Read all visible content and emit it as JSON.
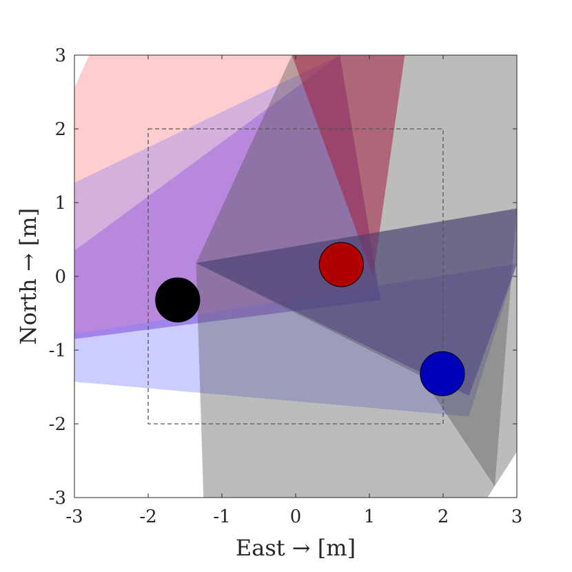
{
  "chart_data": {
    "type": "scatter",
    "title": "",
    "xlabel": "East → [m]",
    "ylabel": "North → [m]",
    "xlim": [
      -3,
      3
    ],
    "ylim": [
      -3,
      3
    ],
    "xticks": [
      "-3",
      "-2",
      "-1",
      "0",
      "1",
      "2",
      "3"
    ],
    "yticks": [
      "-3",
      "-2",
      "-1",
      "0",
      "1",
      "2",
      "3"
    ],
    "grid": false,
    "legend": "none",
    "boundary_box": {
      "x": [
        -2,
        2
      ],
      "y": [
        -2,
        2
      ],
      "style": "dashed",
      "color": "#555555"
    },
    "regions": [
      {
        "color": "#ff9090",
        "opacity": 0.45,
        "points": [
          [
            -3,
            2.56
          ],
          [
            -2.8,
            3.0
          ],
          [
            0.6,
            3.0
          ],
          [
            -3,
            1.27
          ]
        ]
      },
      {
        "color": "#b070c0",
        "opacity": 0.55,
        "points": [
          [
            -3,
            1.27
          ],
          [
            0.6,
            3.0
          ],
          [
            -3,
            0.35
          ]
        ]
      },
      {
        "color": "#a060d0",
        "opacity": 0.75,
        "points": [
          [
            -3,
            0.35
          ],
          [
            0.6,
            3.0
          ],
          [
            1.15,
            -0.32
          ],
          [
            -3,
            -0.85
          ]
        ]
      },
      {
        "color": "#8080ff",
        "opacity": 0.4,
        "points": [
          [
            -3,
            -0.78
          ],
          [
            3.0,
            0.17
          ],
          [
            2.35,
            -1.9
          ],
          [
            -3,
            -1.43
          ]
        ]
      },
      {
        "color": "#4e4e4e",
        "opacity": 0.38,
        "points": [
          [
            -1.35,
            0.18
          ],
          [
            -0.05,
            3.0
          ],
          [
            3.0,
            3.0
          ],
          [
            3.0,
            -2.38
          ],
          [
            2.6,
            -3.0
          ],
          [
            -1.25,
            -3.0
          ]
        ]
      },
      {
        "color": "#444444",
        "opacity": 0.35,
        "points": [
          [
            -1.35,
            0.18
          ],
          [
            3.0,
            0.92
          ],
          [
            2.7,
            -2.85
          ],
          [
            1.7,
            -1.35
          ]
        ]
      },
      {
        "color": "#a02040",
        "opacity": 0.55,
        "points": [
          [
            -0.05,
            3.0
          ],
          [
            1.48,
            3.0
          ],
          [
            1.05,
            0.0
          ]
        ]
      },
      {
        "color": "#4a3f80",
        "opacity": 0.5,
        "points": [
          [
            -1.35,
            0.18
          ],
          [
            3.0,
            0.92
          ],
          [
            3.0,
            0.17
          ],
          [
            2.35,
            -1.62
          ]
        ]
      }
    ],
    "series": [
      {
        "name": "",
        "points": [
          {
            "x": -1.6,
            "y": -0.32,
            "radius": 0.3
          }
        ],
        "color": "#000000"
      },
      {
        "name": "",
        "points": [
          {
            "x": 0.62,
            "y": 0.16,
            "radius": 0.3
          }
        ],
        "color": "#b00000"
      },
      {
        "name": "",
        "points": [
          {
            "x": 1.99,
            "y": -1.32,
            "radius": 0.3
          }
        ],
        "color": "#0000b8"
      }
    ]
  }
}
